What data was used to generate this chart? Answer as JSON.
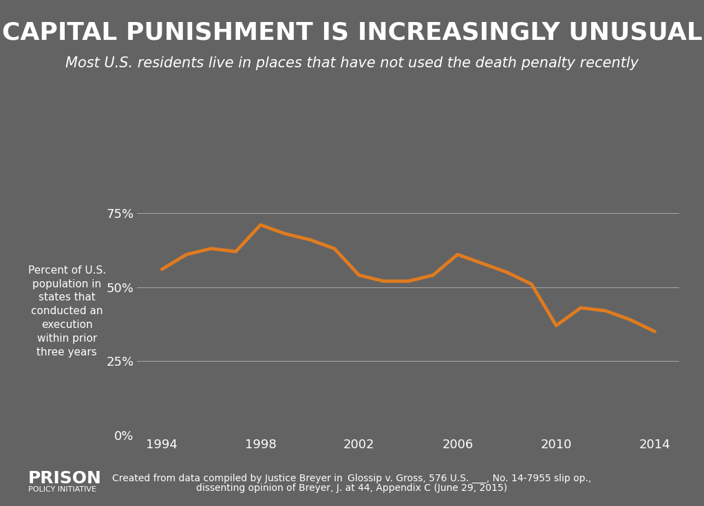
{
  "title": "CAPITAL PUNISHMENT IS INCREASINGLY UNUSUAL",
  "subtitle": "Most U.S. residents live in places that have not used the death penalty recently",
  "ylabel": "Percent of U.S.\npopulation in\nstates that\nconducted an\nexecution\nwithin prior\nthree years",
  "footnote_main": "Created from data compiled by Justice Breyer in  Glossip v. Gross, 576 U.S. ___, No. 14-7955 slip op.,",
  "footnote_sub": "dissenting opinion of Breyer, J. at 44, Appendix C (June 29, 2015)",
  "logo_line1": "PRISON",
  "logo_line2": "POLICY INITIATIVE",
  "background_color": "#636363",
  "line_color": "#e07b20",
  "text_color": "#ffffff",
  "grid_color": "#aaaaaa",
  "yticks": [
    0,
    25,
    50,
    75
  ],
  "ytick_labels": [
    "0%",
    "25%",
    "50%",
    "75%"
  ],
  "xticks": [
    1994,
    1998,
    2002,
    2006,
    2010,
    2014
  ],
  "years": [
    1994,
    1995,
    1996,
    1997,
    1998,
    1999,
    2000,
    2001,
    2002,
    2003,
    2004,
    2005,
    2006,
    2007,
    2008,
    2009,
    2010,
    2011,
    2012,
    2013,
    2014
  ],
  "values": [
    56,
    61,
    63,
    62,
    71,
    68,
    66,
    63,
    54,
    52,
    52,
    54,
    61,
    58,
    55,
    51,
    37,
    43,
    42,
    39,
    35
  ],
  "ylim": [
    0,
    82
  ],
  "xlim": [
    1993,
    2015
  ]
}
